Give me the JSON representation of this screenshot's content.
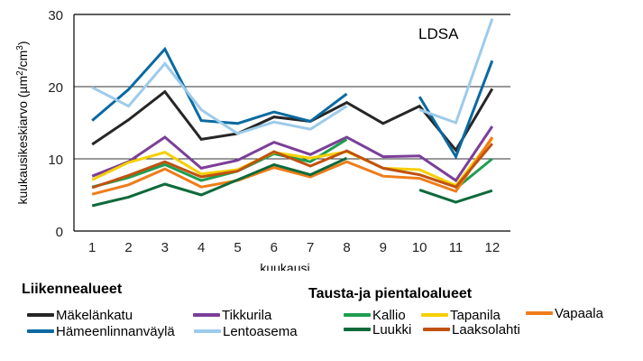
{
  "chart_data": {
    "type": "line",
    "title": "",
    "annotation": "LDSA",
    "xlabel": "kuukausi",
    "ylabel": "kuukausikeskiarvo (µm²/cm³)",
    "ylabel_parts": {
      "main": "kuukausikeskiarvo  (µm",
      "sup1": "2",
      "mid": "/cm",
      "sup2": "3",
      "end": ")"
    },
    "x": [
      1,
      2,
      3,
      4,
      5,
      6,
      7,
      8,
      9,
      10,
      11,
      12
    ],
    "x_tick_labels": [
      "1",
      "2",
      "3",
      "4",
      "5",
      "6",
      "7",
      "8",
      "9",
      "10",
      "11",
      "12"
    ],
    "ylim": [
      0,
      30
    ],
    "y_ticks": [
      0,
      10,
      20,
      30
    ],
    "y_tick_labels": [
      "0",
      "10",
      "20",
      "30"
    ],
    "grid": "horizontal",
    "series": [
      {
        "name": "Mäkelänkatu",
        "group": "Liikennealueet",
        "color": "#262626",
        "values": [
          12.0,
          15.4,
          19.3,
          12.7,
          13.5,
          15.8,
          15.2,
          17.8,
          14.9,
          17.3,
          11.2,
          19.7
        ]
      },
      {
        "name": "Hämeenlinnanväylä",
        "group": "Liikennealueet",
        "color": "#0a6aa1",
        "values": [
          15.3,
          19.6,
          25.2,
          15.3,
          14.9,
          16.5,
          15.2,
          19.0,
          null,
          18.6,
          10.3,
          23.6
        ]
      },
      {
        "name": "Tikkurila",
        "group": "Liikennealueet",
        "color": "#7b3f98",
        "values": [
          7.6,
          9.6,
          13.0,
          8.7,
          9.8,
          12.3,
          10.6,
          13.0,
          10.3,
          10.4,
          7.0,
          14.5
        ]
      },
      {
        "name": "Lentoasema",
        "group": "Liikennealueet",
        "color": "#9dcbea",
        "values": [
          19.9,
          17.3,
          23.2,
          16.8,
          13.5,
          15.1,
          14.1,
          17.3,
          null,
          16.8,
          15.0,
          29.4
        ]
      },
      {
        "name": "Kallio",
        "group": "Tausta-ja pientaloalueet",
        "color": "#1e9e50",
        "values": [
          6.1,
          7.4,
          9.2,
          7.0,
          8.3,
          10.7,
          9.6,
          12.7,
          null,
          null,
          5.9,
          10.0
        ]
      },
      {
        "name": "Tapanila",
        "group": "Tausta-ja pientaloalueet",
        "color": "#f5d000",
        "values": [
          7.1,
          9.5,
          10.9,
          7.9,
          8.5,
          10.9,
          10.1,
          11.0,
          8.7,
          8.5,
          6.3,
          12.8
        ]
      },
      {
        "name": "Vapaala",
        "group": "Tausta-ja pientaloalueet",
        "color": "#ee7d1a",
        "values": [
          5.1,
          6.4,
          8.6,
          6.1,
          7.0,
          8.8,
          7.5,
          9.6,
          7.6,
          7.3,
          5.5,
          13.0
        ]
      },
      {
        "name": "Luukki",
        "group": "Tausta-ja pientaloalueet",
        "color": "#0e6a3a",
        "values": [
          3.5,
          4.7,
          6.5,
          5.0,
          7.1,
          9.2,
          7.8,
          10.1,
          null,
          5.7,
          4.0,
          5.6
        ]
      },
      {
        "name": "Laaksolahti",
        "group": "Tausta-ja pientaloalueet",
        "color": "#c0520f",
        "values": [
          6.0,
          7.7,
          9.6,
          7.5,
          8.3,
          11.0,
          9.0,
          11.1,
          8.7,
          7.8,
          6.1,
          12.1
        ]
      }
    ],
    "legend": {
      "placement": "bottom",
      "groups": [
        {
          "title": "Liikennealueet",
          "items": [
            "Mäkelänkatu",
            "Hämeenlinnanväylä",
            "Tikkurila",
            "Lentoasema"
          ]
        },
        {
          "title": "Tausta-ja  pientaloalueet",
          "items": [
            "Kallio",
            "Luukki",
            "Tapanila",
            "Laaksolahti",
            "Vapaala"
          ]
        }
      ]
    }
  }
}
